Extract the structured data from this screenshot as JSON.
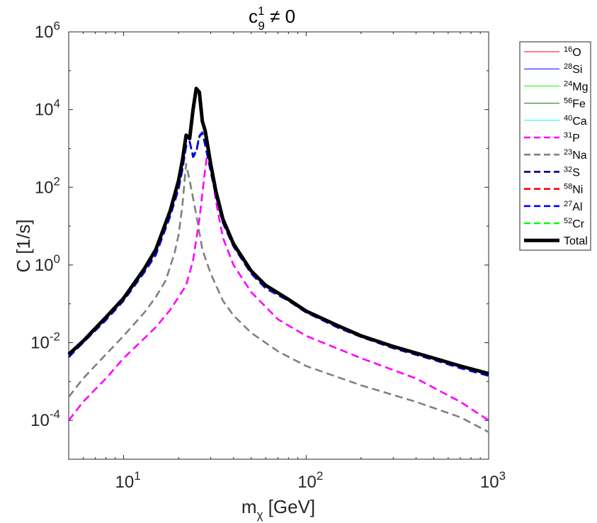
{
  "chart_data": {
    "type": "line",
    "title": {
      "base": "c",
      "sub": "9",
      "sup": "1",
      "rest": " ≠ 0"
    },
    "xlabel": {
      "base": "m",
      "sub": "χ",
      "rest": " [GeV]"
    },
    "ylabel": "C [1/s]",
    "xscale": "log",
    "yscale": "log",
    "xlim": [
      5,
      1000
    ],
    "ylim": [
      1e-05,
      1000000.0
    ],
    "xticks": [
      {
        "value": 10,
        "base": "10",
        "exp": "1"
      },
      {
        "value": 100,
        "base": "10",
        "exp": "2"
      },
      {
        "value": 1000,
        "base": "10",
        "exp": "3"
      }
    ],
    "yticks": [
      {
        "value": 0.0001,
        "base": "10",
        "exp": "-4"
      },
      {
        "value": 0.01,
        "base": "10",
        "exp": "-2"
      },
      {
        "value": 1,
        "base": "10",
        "exp": "0"
      },
      {
        "value": 100,
        "base": "10",
        "exp": "2"
      },
      {
        "value": 10000,
        "base": "10",
        "exp": "4"
      },
      {
        "value": 1000000,
        "base": "10",
        "exp": "6"
      }
    ],
    "legend_position": "outside-right",
    "series": [
      {
        "sup": "16",
        "name": "O",
        "color": "#ff0000",
        "style": "solid",
        "width": "thin",
        "points": []
      },
      {
        "sup": "28",
        "name": "Si",
        "color": "#0000ff",
        "style": "solid",
        "width": "thin",
        "points": []
      },
      {
        "sup": "24",
        "name": "Mg",
        "color": "#00ff00",
        "style": "solid",
        "width": "thin",
        "points": []
      },
      {
        "sup": "56",
        "name": "Fe",
        "color": "#008000",
        "style": "solid",
        "width": "thin",
        "points": []
      },
      {
        "sup": "40",
        "name": "Ca",
        "color": "#00ffff",
        "style": "solid",
        "width": "thin",
        "points": []
      },
      {
        "sup": "31",
        "name": "P",
        "color": "#ff00ff",
        "style": "dashed",
        "width": "medium",
        "points": [
          [
            5,
            0.0001
          ],
          [
            6,
            0.0003
          ],
          [
            8,
            0.0012
          ],
          [
            10,
            0.004
          ],
          [
            13,
            0.013
          ],
          [
            15,
            0.025
          ],
          [
            18,
            0.07
          ],
          [
            20,
            0.15
          ],
          [
            22,
            0.3
          ],
          [
            24,
            1.3
          ],
          [
            26,
            15
          ],
          [
            28,
            300
          ],
          [
            29,
            1000
          ],
          [
            30,
            400
          ],
          [
            32,
            45
          ],
          [
            35,
            5
          ],
          [
            40,
            1
          ],
          [
            50,
            0.2
          ],
          [
            70,
            0.04
          ],
          [
            100,
            0.015
          ],
          [
            200,
            0.004
          ],
          [
            400,
            0.0012
          ],
          [
            700,
            0.0003
          ],
          [
            1000,
            0.0001
          ]
        ]
      },
      {
        "sup": "23",
        "name": "Na",
        "color": "#808080",
        "style": "dashed",
        "width": "medium",
        "points": [
          [
            5,
            0.0004
          ],
          [
            6,
            0.0012
          ],
          [
            8,
            0.005
          ],
          [
            10,
            0.015
          ],
          [
            13,
            0.06
          ],
          [
            15,
            0.15
          ],
          [
            17,
            0.4
          ],
          [
            19,
            2
          ],
          [
            20,
            6
          ],
          [
            21,
            35
          ],
          [
            22,
            400
          ],
          [
            23,
            150
          ],
          [
            25,
            20
          ],
          [
            27,
            2.5
          ],
          [
            30,
            0.6
          ],
          [
            35,
            0.12
          ],
          [
            40,
            0.05
          ],
          [
            50,
            0.018
          ],
          [
            70,
            0.006
          ],
          [
            100,
            0.0025
          ],
          [
            200,
            0.0008
          ],
          [
            400,
            0.0003
          ],
          [
            700,
            0.00012
          ],
          [
            1000,
            5e-05
          ]
        ]
      },
      {
        "sup": "32",
        "name": "S",
        "color": "#000080",
        "style": "dashed",
        "width": "medium",
        "points": [
          [
            5,
            0.0045
          ],
          [
            6,
            0.01
          ],
          [
            8,
            0.04
          ],
          [
            10,
            0.13
          ],
          [
            13,
            0.7
          ],
          [
            15,
            2
          ],
          [
            18,
            20
          ],
          [
            20,
            100
          ],
          [
            21,
            300
          ],
          [
            22,
            1200
          ],
          [
            23,
            1500
          ],
          [
            24,
            600
          ],
          [
            25,
            800
          ],
          [
            26,
            2000
          ],
          [
            27,
            2500
          ],
          [
            28,
            1200
          ],
          [
            30,
            250
          ],
          [
            32,
            60
          ],
          [
            35,
            12
          ],
          [
            40,
            3
          ],
          [
            50,
            0.6
          ],
          [
            60,
            0.25
          ],
          [
            80,
            0.12
          ],
          [
            100,
            0.06
          ],
          [
            150,
            0.025
          ],
          [
            200,
            0.014
          ],
          [
            300,
            0.0075
          ],
          [
            500,
            0.0038
          ],
          [
            700,
            0.0023
          ],
          [
            1000,
            0.0015
          ]
        ]
      },
      {
        "sup": "58",
        "name": "Ni",
        "color": "#ff0000",
        "style": "dashed",
        "width": "medium",
        "points": []
      },
      {
        "sup": "27",
        "name": "Al",
        "color": "#0000ff",
        "style": "dashed",
        "width": "medium",
        "points": [
          [
            5,
            0.0042
          ],
          [
            6,
            0.01
          ],
          [
            8,
            0.038
          ],
          [
            10,
            0.12
          ],
          [
            13,
            0.65
          ],
          [
            15,
            1.8
          ],
          [
            18,
            18
          ],
          [
            20,
            90
          ],
          [
            21,
            280
          ],
          [
            22,
            1100
          ],
          [
            23,
            1500
          ],
          [
            24,
            650
          ],
          [
            25,
            850
          ],
          [
            26,
            2100
          ],
          [
            27,
            2600
          ],
          [
            28,
            1300
          ],
          [
            30,
            260
          ],
          [
            32,
            62
          ],
          [
            35,
            12
          ],
          [
            40,
            3
          ],
          [
            50,
            0.6
          ],
          [
            60,
            0.25
          ],
          [
            80,
            0.12
          ],
          [
            100,
            0.06
          ],
          [
            150,
            0.024
          ],
          [
            200,
            0.014
          ],
          [
            300,
            0.0072
          ],
          [
            500,
            0.0036
          ],
          [
            700,
            0.0022
          ],
          [
            1000,
            0.0014
          ]
        ]
      },
      {
        "sup": "52",
        "name": "Cr",
        "color": "#00ff00",
        "style": "dashed",
        "width": "medium",
        "points": []
      },
      {
        "sup": "",
        "name": "Total",
        "color": "#000000",
        "style": "solid",
        "width": "thick",
        "points": [
          [
            5,
            0.005
          ],
          [
            6,
            0.011
          ],
          [
            8,
            0.045
          ],
          [
            10,
            0.14
          ],
          [
            13,
            0.8
          ],
          [
            15,
            2.5
          ],
          [
            18,
            25
          ],
          [
            20,
            150
          ],
          [
            21,
            500
          ],
          [
            22,
            2200
          ],
          [
            23,
            1800
          ],
          [
            24,
            10000
          ],
          [
            25,
            35000
          ],
          [
            26,
            28000
          ],
          [
            27,
            5000
          ],
          [
            28,
            2800
          ],
          [
            30,
            400
          ],
          [
            32,
            80
          ],
          [
            35,
            15
          ],
          [
            40,
            3.5
          ],
          [
            50,
            0.7
          ],
          [
            60,
            0.3
          ],
          [
            80,
            0.13
          ],
          [
            100,
            0.065
          ],
          [
            150,
            0.027
          ],
          [
            200,
            0.015
          ],
          [
            300,
            0.008
          ],
          [
            500,
            0.004
          ],
          [
            700,
            0.0025
          ],
          [
            1000,
            0.0016
          ]
        ]
      }
    ]
  }
}
